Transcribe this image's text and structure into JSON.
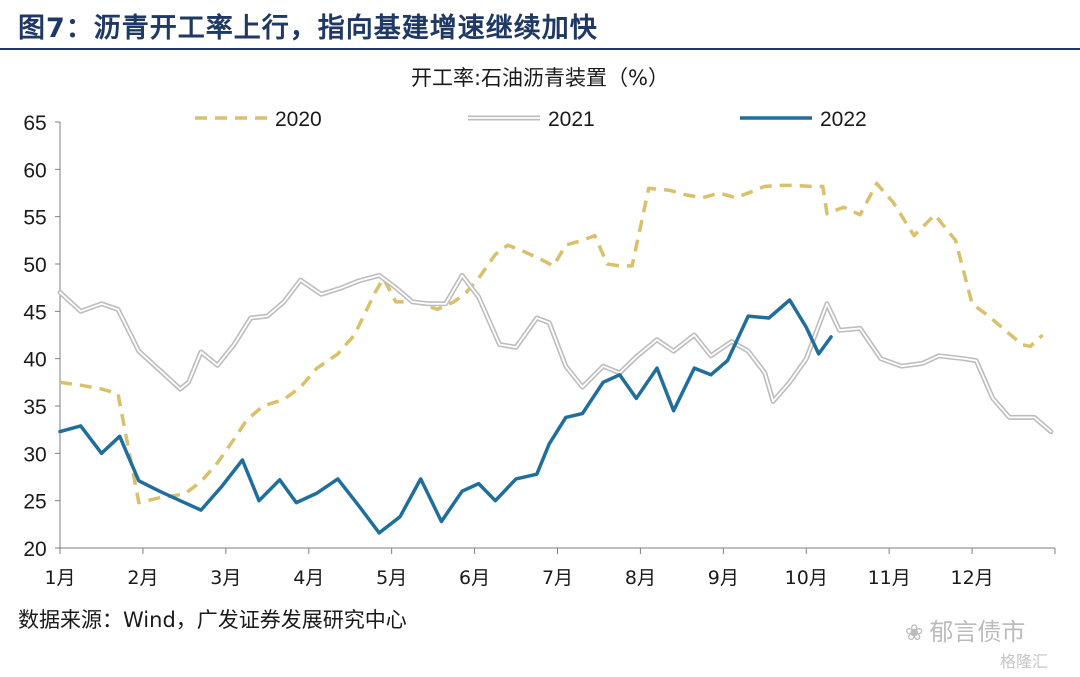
{
  "figure": {
    "title": "图7：沥青开工率上行，指向基建增速继续加快",
    "source": "数据来源：Wind，广发证券发展研究中心",
    "watermark_primary": "郁言债市",
    "watermark_secondary": "格隆汇"
  },
  "chart_data": {
    "type": "line",
    "title": "开工率:石油沥青装置（%）",
    "xlabel": "",
    "ylabel": "",
    "ylim": [
      20,
      65
    ],
    "yticks": [
      20,
      25,
      30,
      35,
      40,
      45,
      50,
      55,
      60,
      65
    ],
    "xlim": [
      1,
      13
    ],
    "categories": [
      "1月",
      "2月",
      "3月",
      "4月",
      "5月",
      "6月",
      "7月",
      "8月",
      "9月",
      "10月",
      "11月",
      "12月"
    ],
    "grid": false,
    "legend_position": "top",
    "series": [
      {
        "name": "2020",
        "color": "#d9c06b",
        "style": "dashed",
        "points": [
          [
            1.0,
            37.5
          ],
          [
            1.25,
            37.2
          ],
          [
            1.5,
            36.8
          ],
          [
            1.7,
            36.3
          ],
          [
            1.95,
            24.8
          ],
          [
            2.2,
            25.3
          ],
          [
            2.5,
            25.7
          ],
          [
            2.7,
            27.0
          ],
          [
            2.9,
            29.0
          ],
          [
            3.1,
            31.5
          ],
          [
            3.25,
            33.5
          ],
          [
            3.45,
            35.0
          ],
          [
            3.7,
            35.7
          ],
          [
            3.9,
            37.0
          ],
          [
            4.1,
            39.0
          ],
          [
            4.35,
            40.5
          ],
          [
            4.55,
            42.5
          ],
          [
            4.8,
            47.0
          ],
          [
            4.9,
            48.5
          ],
          [
            5.05,
            46.0
          ],
          [
            5.3,
            46.0
          ],
          [
            5.55,
            45.2
          ],
          [
            5.75,
            46.0
          ],
          [
            5.9,
            47.0
          ],
          [
            6.05,
            48.5
          ],
          [
            6.25,
            51.0
          ],
          [
            6.4,
            52.0
          ],
          [
            6.6,
            51.3
          ],
          [
            6.8,
            50.5
          ],
          [
            6.95,
            49.8
          ],
          [
            7.1,
            52.0
          ],
          [
            7.3,
            52.5
          ],
          [
            7.45,
            53.0
          ],
          [
            7.6,
            50.0
          ],
          [
            7.75,
            49.8
          ],
          [
            7.9,
            49.8
          ],
          [
            8.1,
            58.0
          ],
          [
            8.35,
            57.8
          ],
          [
            8.55,
            57.3
          ],
          [
            8.75,
            57.0
          ],
          [
            8.95,
            57.5
          ],
          [
            9.15,
            57.0
          ],
          [
            9.3,
            57.5
          ],
          [
            9.5,
            58.2
          ],
          [
            9.7,
            58.3
          ],
          [
            9.85,
            58.3
          ],
          [
            10.05,
            58.2
          ],
          [
            10.2,
            58.2
          ],
          [
            10.25,
            55.3
          ],
          [
            10.45,
            56.0
          ],
          [
            10.65,
            55.2
          ],
          [
            10.85,
            58.5
          ],
          [
            11.05,
            56.5
          ],
          [
            11.3,
            53.0
          ],
          [
            11.55,
            55.2
          ],
          [
            11.8,
            52.5
          ],
          [
            12.0,
            45.8
          ],
          [
            12.2,
            44.5
          ],
          [
            12.4,
            43.0
          ],
          [
            12.6,
            41.5
          ],
          [
            12.7,
            41.3
          ],
          [
            12.85,
            42.5
          ]
        ]
      },
      {
        "name": "2021",
        "color": "#bdbdbd",
        "style": "double",
        "points": [
          [
            1.0,
            47.0
          ],
          [
            1.25,
            45.0
          ],
          [
            1.5,
            45.8
          ],
          [
            1.7,
            45.2
          ],
          [
            1.95,
            40.8
          ],
          [
            2.2,
            38.8
          ],
          [
            2.45,
            36.8
          ],
          [
            2.55,
            37.5
          ],
          [
            2.7,
            40.7
          ],
          [
            2.9,
            39.3
          ],
          [
            3.1,
            41.5
          ],
          [
            3.3,
            44.3
          ],
          [
            3.5,
            44.5
          ],
          [
            3.7,
            46.0
          ],
          [
            3.9,
            48.3
          ],
          [
            4.15,
            46.8
          ],
          [
            4.4,
            47.5
          ],
          [
            4.6,
            48.2
          ],
          [
            4.85,
            48.8
          ],
          [
            5.05,
            47.5
          ],
          [
            5.25,
            46.0
          ],
          [
            5.45,
            45.8
          ],
          [
            5.65,
            45.8
          ],
          [
            5.85,
            48.8
          ],
          [
            6.05,
            46.5
          ],
          [
            6.3,
            41.5
          ],
          [
            6.5,
            41.2
          ],
          [
            6.75,
            44.3
          ],
          [
            6.9,
            43.8
          ],
          [
            7.1,
            39.2
          ],
          [
            7.3,
            37.0
          ],
          [
            7.55,
            39.2
          ],
          [
            7.75,
            38.5
          ],
          [
            7.95,
            40.2
          ],
          [
            8.2,
            42.0
          ],
          [
            8.4,
            40.8
          ],
          [
            8.65,
            42.5
          ],
          [
            8.85,
            40.3
          ],
          [
            9.1,
            41.8
          ],
          [
            9.3,
            40.8
          ],
          [
            9.5,
            38.5
          ],
          [
            9.6,
            35.5
          ],
          [
            9.8,
            37.5
          ],
          [
            10.0,
            40.0
          ],
          [
            10.15,
            43.5
          ],
          [
            10.25,
            45.8
          ],
          [
            10.4,
            43.0
          ],
          [
            10.65,
            43.2
          ],
          [
            10.9,
            40.0
          ],
          [
            11.15,
            39.2
          ],
          [
            11.4,
            39.5
          ],
          [
            11.6,
            40.3
          ],
          [
            11.9,
            40.0
          ],
          [
            12.05,
            39.8
          ],
          [
            12.25,
            35.8
          ],
          [
            12.45,
            33.8
          ],
          [
            12.75,
            33.8
          ],
          [
            12.95,
            32.3
          ]
        ]
      },
      {
        "name": "2022",
        "color": "#1f6e9c",
        "style": "solid",
        "points": [
          [
            1.0,
            32.3
          ],
          [
            1.25,
            32.9
          ],
          [
            1.5,
            30.0
          ],
          [
            1.72,
            31.8
          ],
          [
            1.95,
            27.1
          ],
          [
            2.2,
            26.0
          ],
          [
            2.45,
            25.0
          ],
          [
            2.7,
            24.0
          ],
          [
            2.95,
            26.5
          ],
          [
            3.2,
            29.3
          ],
          [
            3.4,
            25.0
          ],
          [
            3.65,
            27.2
          ],
          [
            3.85,
            24.8
          ],
          [
            4.1,
            25.8
          ],
          [
            4.35,
            27.3
          ],
          [
            4.6,
            24.5
          ],
          [
            4.85,
            21.6
          ],
          [
            5.1,
            23.3
          ],
          [
            5.35,
            27.3
          ],
          [
            5.6,
            22.8
          ],
          [
            5.85,
            26.0
          ],
          [
            6.05,
            26.8
          ],
          [
            6.25,
            25.0
          ],
          [
            6.5,
            27.3
          ],
          [
            6.75,
            27.8
          ],
          [
            6.9,
            31.0
          ],
          [
            7.1,
            33.8
          ],
          [
            7.3,
            34.2
          ],
          [
            7.55,
            37.5
          ],
          [
            7.75,
            38.3
          ],
          [
            7.95,
            35.8
          ],
          [
            8.2,
            39.0
          ],
          [
            8.4,
            34.5
          ],
          [
            8.65,
            39.0
          ],
          [
            8.85,
            38.3
          ],
          [
            9.05,
            39.8
          ],
          [
            9.3,
            44.5
          ],
          [
            9.55,
            44.3
          ],
          [
            9.8,
            46.2
          ],
          [
            10.0,
            43.3
          ],
          [
            10.15,
            40.5
          ],
          [
            10.3,
            42.3
          ]
        ]
      }
    ]
  }
}
